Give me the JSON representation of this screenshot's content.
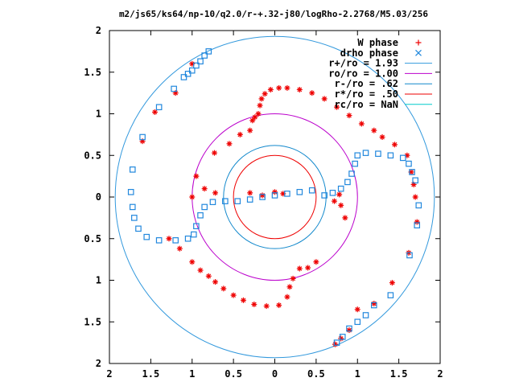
{
  "chart_data": {
    "type": "scatter",
    "title": "m2/js65/ks64/np-10/q2.0/r-+.32-j80/logRho-2.2768/M5.03/256",
    "xlim": [
      -2,
      2
    ],
    "ylim": [
      -2,
      2
    ],
    "x_ticks": [
      "2",
      "1.5",
      "1",
      "0.5",
      "0",
      "0.5",
      "1",
      "1.5",
      "2"
    ],
    "y_ticks": [
      "2",
      "1.5",
      "1",
      "0.5",
      "0",
      "0.5",
      "1",
      "1.5",
      "2"
    ],
    "grid": false,
    "legend_position": "top-right",
    "series": [
      {
        "name": "W phase",
        "marker": "plus-star",
        "color": "#ee0000",
        "points": [
          [
            -1.0,
            1.6
          ],
          [
            -1.2,
            1.25
          ],
          [
            -1.45,
            1.02
          ],
          [
            -1.6,
            0.67
          ],
          [
            -0.73,
            0.53
          ],
          [
            -0.55,
            0.64
          ],
          [
            -0.42,
            0.75
          ],
          [
            -0.3,
            0.8
          ],
          [
            -0.27,
            0.92
          ],
          [
            -0.24,
            0.96
          ],
          [
            -0.2,
            1.0
          ],
          [
            -0.18,
            1.1
          ],
          [
            -0.16,
            1.18
          ],
          [
            -0.12,
            1.24
          ],
          [
            -0.05,
            1.29
          ],
          [
            0.05,
            1.31
          ],
          [
            0.15,
            1.31
          ],
          [
            0.3,
            1.29
          ],
          [
            0.45,
            1.25
          ],
          [
            0.6,
            1.18
          ],
          [
            0.75,
            1.08
          ],
          [
            0.9,
            0.98
          ],
          [
            1.05,
            0.88
          ],
          [
            1.2,
            0.8
          ],
          [
            1.3,
            0.72
          ],
          [
            1.45,
            0.63
          ],
          [
            1.6,
            0.5
          ],
          [
            1.65,
            0.3
          ],
          [
            1.72,
            -0.3
          ],
          [
            1.7,
            0.0
          ],
          [
            1.68,
            0.15
          ],
          [
            0.8,
            -0.1
          ],
          [
            0.85,
            -0.25
          ],
          [
            0.78,
            0.03
          ],
          [
            0.72,
            -0.05
          ],
          [
            -0.72,
            0.05
          ],
          [
            -0.85,
            0.1
          ],
          [
            -0.95,
            0.25
          ],
          [
            -1.0,
            0.0
          ],
          [
            -1.28,
            -0.5
          ],
          [
            -1.15,
            -0.62
          ],
          [
            -1.0,
            -0.78
          ],
          [
            -0.9,
            -0.88
          ],
          [
            -0.8,
            -0.95
          ],
          [
            -0.72,
            -1.02
          ],
          [
            -0.62,
            -1.1
          ],
          [
            -0.5,
            -1.18
          ],
          [
            -0.38,
            -1.24
          ],
          [
            -0.25,
            -1.29
          ],
          [
            -0.1,
            -1.31
          ],
          [
            0.05,
            -1.3
          ],
          [
            0.15,
            -1.2
          ],
          [
            0.18,
            -1.08
          ],
          [
            0.22,
            -0.98
          ],
          [
            0.3,
            -0.86
          ],
          [
            0.4,
            -0.85
          ],
          [
            0.5,
            -0.78
          ],
          [
            -0.3,
            0.05
          ],
          [
            -0.15,
            0.02
          ],
          [
            0.0,
            0.06
          ],
          [
            0.1,
            0.04
          ],
          [
            1.0,
            -1.35
          ],
          [
            1.2,
            -1.28
          ],
          [
            1.42,
            -1.03
          ],
          [
            1.62,
            -0.67
          ],
          [
            0.73,
            -1.77
          ],
          [
            0.8,
            -1.7
          ],
          [
            0.9,
            -1.6
          ]
        ]
      },
      {
        "name": "drho phase",
        "marker": "square-x",
        "color": "#2288dd",
        "points": [
          [
            -1.05,
            1.48
          ],
          [
            -1.0,
            1.52
          ],
          [
            -0.95,
            1.58
          ],
          [
            -0.9,
            1.63
          ],
          [
            -0.85,
            1.7
          ],
          [
            -0.8,
            1.75
          ],
          [
            -1.1,
            1.44
          ],
          [
            -1.22,
            1.3
          ],
          [
            -1.4,
            1.08
          ],
          [
            -1.6,
            0.72
          ],
          [
            -1.72,
            0.33
          ],
          [
            -1.74,
            0.06
          ],
          [
            -1.72,
            -0.12
          ],
          [
            -1.7,
            -0.25
          ],
          [
            -1.65,
            -0.38
          ],
          [
            -1.55,
            -0.48
          ],
          [
            -1.4,
            -0.52
          ],
          [
            -1.2,
            -0.52
          ],
          [
            -1.05,
            -0.5
          ],
          [
            -0.98,
            -0.45
          ],
          [
            -0.95,
            -0.35
          ],
          [
            -0.9,
            -0.22
          ],
          [
            -0.85,
            -0.12
          ],
          [
            -0.75,
            -0.06
          ],
          [
            -0.6,
            -0.05
          ],
          [
            -0.45,
            -0.05
          ],
          [
            -0.3,
            -0.03
          ],
          [
            -0.15,
            0.0
          ],
          [
            0.0,
            0.02
          ],
          [
            0.15,
            0.04
          ],
          [
            0.3,
            0.06
          ],
          [
            0.45,
            0.08
          ],
          [
            0.6,
            0.02
          ],
          [
            0.7,
            0.05
          ],
          [
            0.8,
            0.1
          ],
          [
            0.88,
            0.18
          ],
          [
            0.93,
            0.28
          ],
          [
            0.97,
            0.4
          ],
          [
            1.0,
            0.5
          ],
          [
            1.1,
            0.53
          ],
          [
            1.25,
            0.52
          ],
          [
            1.4,
            0.5
          ],
          [
            1.55,
            0.47
          ],
          [
            1.62,
            0.4
          ],
          [
            1.66,
            0.3
          ],
          [
            1.7,
            0.2
          ],
          [
            1.74,
            -0.1
          ],
          [
            1.72,
            -0.34
          ],
          [
            1.63,
            -0.7
          ],
          [
            1.4,
            -1.18
          ],
          [
            1.2,
            -1.3
          ],
          [
            1.1,
            -1.42
          ],
          [
            1.0,
            -1.5
          ],
          [
            0.9,
            -1.58
          ],
          [
            0.82,
            -1.68
          ],
          [
            0.75,
            -1.75
          ]
        ]
      }
    ],
    "circles": [
      {
        "name": "r+/ro = 1.93",
        "radius": 1.93,
        "color": "#3399dd"
      },
      {
        "name": "ro/ro = 1.00",
        "radius": 1.0,
        "color": "#bb00cc"
      },
      {
        "name": "r-/ro = .62",
        "radius": 0.62,
        "color": "#1188cc"
      },
      {
        "name": "r*/ro = .50",
        "radius": 0.5,
        "color": "#ee0000"
      },
      {
        "name": "rc/ro = NaN",
        "radius": null,
        "color": "#00cccc"
      }
    ]
  }
}
